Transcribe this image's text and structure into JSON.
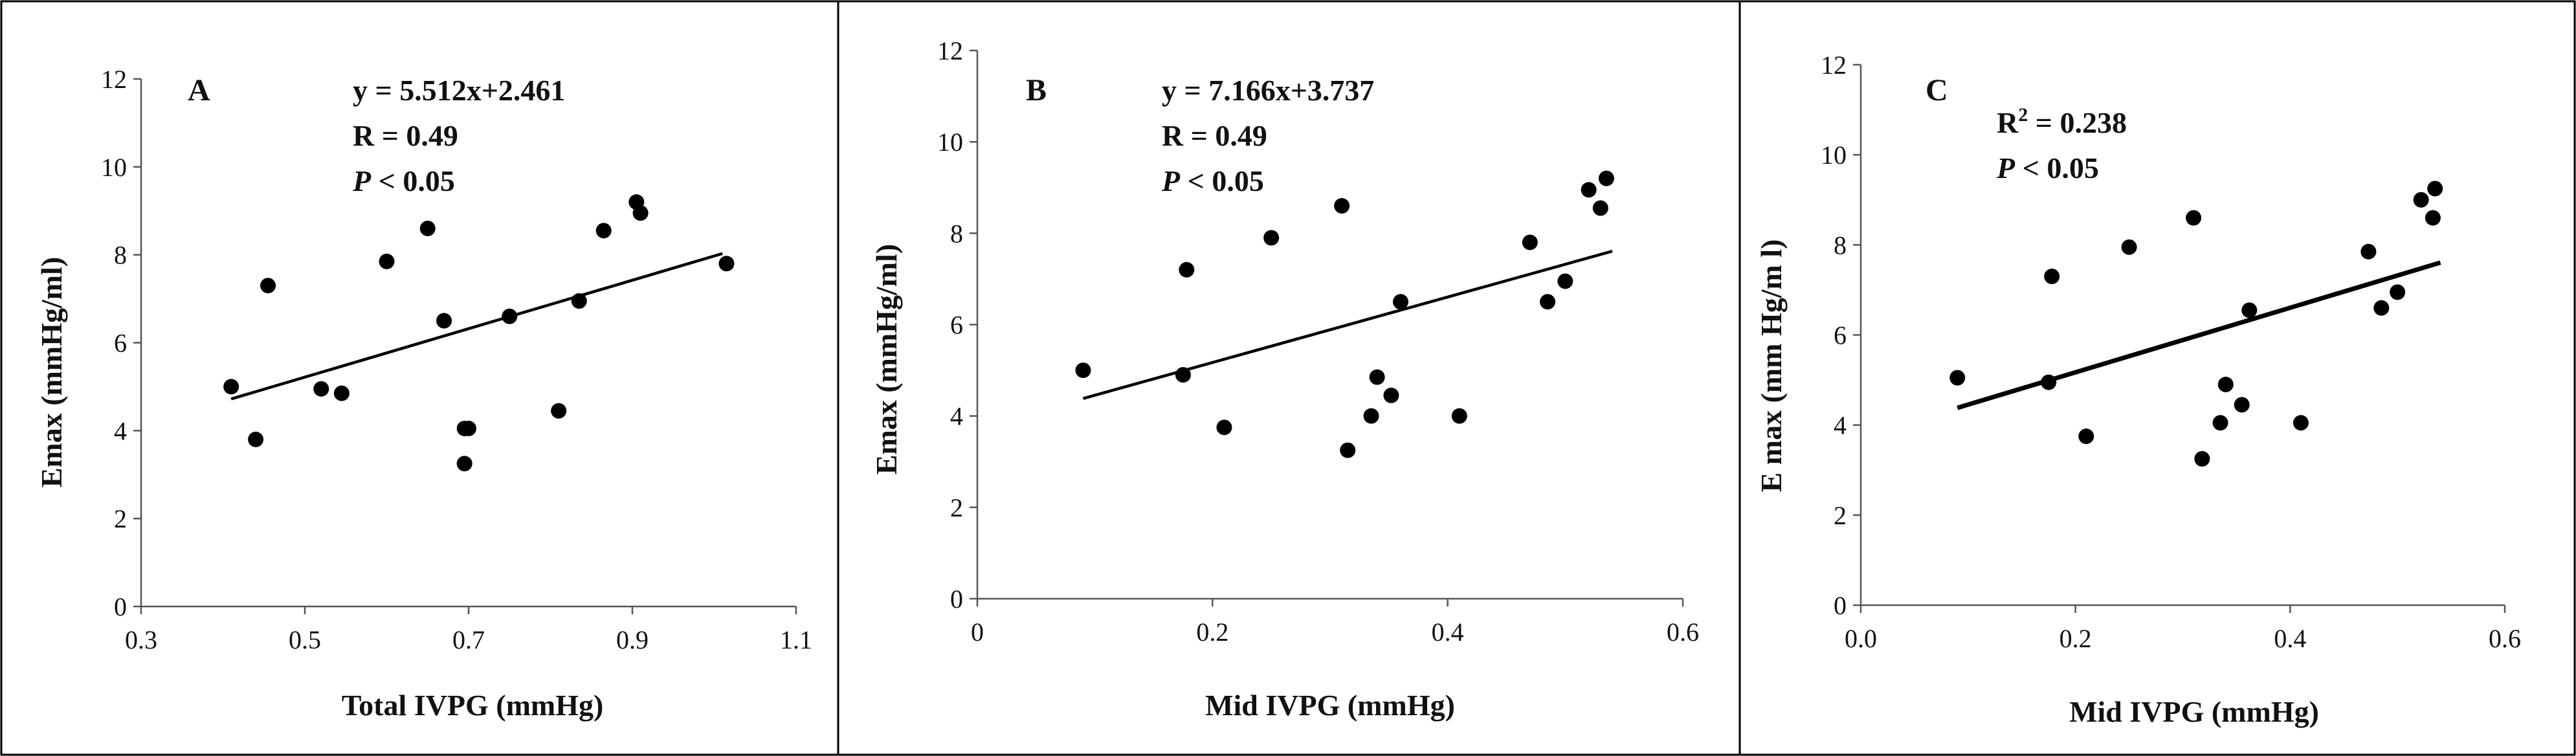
{
  "chart_data": [
    {
      "type": "scatter",
      "panel": "A",
      "xlabel": "Total IVPG (mmHg)",
      "ylabel": "Emax (mmHg/ml)",
      "xlim": [
        0.3,
        1.1
      ],
      "ylim": [
        0,
        12
      ],
      "xticks": [
        "0.3",
        "0.5",
        "0.7",
        "0.9",
        "1.1"
      ],
      "yticks": [
        "0",
        "2",
        "4",
        "6",
        "8",
        "10",
        "12"
      ],
      "annotations": [
        {
          "text": "y = 5.512x+2.461"
        },
        {
          "text": "R = 0.49"
        },
        {
          "italic": "P",
          "text": " < 0.05"
        }
      ],
      "trendline": {
        "slope": 5.512,
        "intercept": 2.461,
        "x_range": [
          0.41,
          1.01
        ]
      },
      "points": [
        {
          "x": 0.41,
          "y": 5.0
        },
        {
          "x": 0.44,
          "y": 3.8
        },
        {
          "x": 0.455,
          "y": 7.3
        },
        {
          "x": 0.52,
          "y": 4.95
        },
        {
          "x": 0.545,
          "y": 4.85
        },
        {
          "x": 0.6,
          "y": 7.85
        },
        {
          "x": 0.65,
          "y": 8.6
        },
        {
          "x": 0.67,
          "y": 6.5
        },
        {
          "x": 0.695,
          "y": 4.05
        },
        {
          "x": 0.695,
          "y": 3.25
        },
        {
          "x": 0.7,
          "y": 4.05
        },
        {
          "x": 0.75,
          "y": 6.6
        },
        {
          "x": 0.81,
          "y": 4.45
        },
        {
          "x": 0.835,
          "y": 6.95
        },
        {
          "x": 0.865,
          "y": 8.55
        },
        {
          "x": 0.905,
          "y": 9.2
        },
        {
          "x": 0.91,
          "y": 8.95
        },
        {
          "x": 1.015,
          "y": 7.8
        }
      ]
    },
    {
      "type": "scatter",
      "panel": "B",
      "xlabel": "Mid IVPG (mmHg)",
      "ylabel": "Emax (mmHg/ml)",
      "xlim": [
        0,
        0.6
      ],
      "ylim": [
        0,
        12
      ],
      "xticks": [
        "0",
        "0.2",
        "0.4",
        "0.6"
      ],
      "yticks": [
        "0",
        "2",
        "4",
        "6",
        "8",
        "10",
        "12"
      ],
      "annotations": [
        {
          "text": "y = 7.166x+3.737"
        },
        {
          "text": "R = 0.49"
        },
        {
          "italic": "P",
          "text": " < 0.05"
        }
      ],
      "trendline": {
        "slope": 7.166,
        "intercept": 3.737,
        "x_range": [
          0.09,
          0.54
        ]
      },
      "points": [
        {
          "x": 0.09,
          "y": 5.0
        },
        {
          "x": 0.175,
          "y": 4.9
        },
        {
          "x": 0.178,
          "y": 7.2
        },
        {
          "x": 0.21,
          "y": 3.75
        },
        {
          "x": 0.25,
          "y": 7.9
        },
        {
          "x": 0.31,
          "y": 8.6
        },
        {
          "x": 0.315,
          "y": 3.25
        },
        {
          "x": 0.335,
          "y": 4.0
        },
        {
          "x": 0.34,
          "y": 4.85
        },
        {
          "x": 0.352,
          "y": 4.45
        },
        {
          "x": 0.36,
          "y": 6.5
        },
        {
          "x": 0.41,
          "y": 4.0
        },
        {
          "x": 0.47,
          "y": 7.8
        },
        {
          "x": 0.485,
          "y": 6.5
        },
        {
          "x": 0.5,
          "y": 6.95
        },
        {
          "x": 0.52,
          "y": 8.95
        },
        {
          "x": 0.53,
          "y": 8.55
        },
        {
          "x": 0.535,
          "y": 9.2
        }
      ]
    },
    {
      "type": "scatter",
      "panel": "C",
      "xlabel": "Mid IVPG (mmHg)",
      "ylabel": "E max (mm Hg/m l)",
      "xlim": [
        0,
        0.6
      ],
      "ylim": [
        0,
        12
      ],
      "xticks": [
        "0.0",
        "0.2",
        "0.4",
        "0.6"
      ],
      "yticks": [
        "0",
        "2",
        "4",
        "6",
        "8",
        "10",
        "12"
      ],
      "annotations": [
        {
          "text": "R",
          "sup": "2",
          "tail": " = 0.238"
        },
        {
          "italic": "P",
          "text": " < 0.05"
        }
      ],
      "trendline": {
        "slope": 7.166,
        "intercept": 3.737,
        "x_range": [
          0.09,
          0.54
        ]
      },
      "points": [
        {
          "x": 0.09,
          "y": 5.05
        },
        {
          "x": 0.175,
          "y": 4.95
        },
        {
          "x": 0.178,
          "y": 7.3
        },
        {
          "x": 0.21,
          "y": 3.75
        },
        {
          "x": 0.25,
          "y": 7.95
        },
        {
          "x": 0.31,
          "y": 8.6
        },
        {
          "x": 0.318,
          "y": 3.25
        },
        {
          "x": 0.335,
          "y": 4.05
        },
        {
          "x": 0.34,
          "y": 4.9
        },
        {
          "x": 0.355,
          "y": 4.45
        },
        {
          "x": 0.362,
          "y": 6.55
        },
        {
          "x": 0.41,
          "y": 4.05
        },
        {
          "x": 0.473,
          "y": 7.85
        },
        {
          "x": 0.485,
          "y": 6.6
        },
        {
          "x": 0.5,
          "y": 6.95
        },
        {
          "x": 0.522,
          "y": 9.0
        },
        {
          "x": 0.533,
          "y": 8.6
        },
        {
          "x": 0.535,
          "y": 9.25
        }
      ]
    }
  ]
}
